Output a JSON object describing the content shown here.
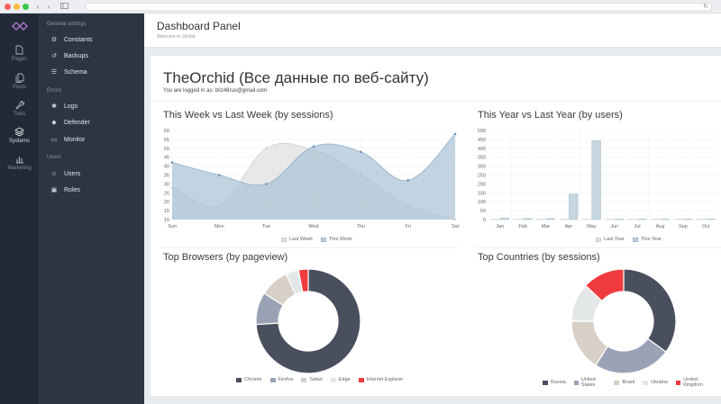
{
  "sidebar": {
    "rail": [
      {
        "label": "Pages",
        "icon": "file-icon"
      },
      {
        "label": "Posts",
        "icon": "documents-icon"
      },
      {
        "label": "Tools",
        "icon": "wrench-icon"
      },
      {
        "label": "Systems",
        "icon": "layers-icon"
      },
      {
        "label": "Marketing",
        "icon": "bar-chart-icon"
      }
    ],
    "sections": [
      {
        "title": "General settings",
        "items": [
          {
            "label": "Constants",
            "icon": "gear-icon"
          },
          {
            "label": "Backups",
            "icon": "history-icon"
          },
          {
            "label": "Schema",
            "icon": "database-icon"
          }
        ]
      },
      {
        "title": "Errors",
        "items": [
          {
            "label": "Logs",
            "icon": "bug-icon"
          },
          {
            "label": "Defender",
            "icon": "shield-icon"
          },
          {
            "label": "Monitor",
            "icon": "monitor-icon"
          }
        ]
      },
      {
        "title": "Users",
        "items": [
          {
            "label": "Users",
            "icon": "user-icon"
          },
          {
            "label": "Roles",
            "icon": "lock-icon"
          }
        ]
      }
    ]
  },
  "header": {
    "title": "Dashboard Panel",
    "subtitle": "Welcome to Orchid"
  },
  "panel": {
    "title": "TheOrchid (Все данные по веб-сайту)",
    "logged_in": "You are logged in as: bliz48rus@gmail.com"
  },
  "colors": {
    "dark": "#4a4f5e",
    "steel": "#99a3b5",
    "beige": "#d8cfc6",
    "light": "#e4e7e8",
    "red": "#ef3b3f",
    "blue_fill": "#b9cbd8",
    "grey_fill": "#e1e1e1"
  },
  "chart_data": [
    {
      "type": "area",
      "title": "This Week vs Last Week (by sessions)",
      "categories": [
        "Sun",
        "Mon",
        "Tue",
        "Wed",
        "Thu",
        "Fri",
        "Sat"
      ],
      "series": [
        {
          "name": "Last Week",
          "values": [
            28,
            18,
            50,
            49,
            35,
            18,
            10
          ]
        },
        {
          "name": "This Week",
          "values": [
            42,
            35,
            30,
            51,
            48,
            32,
            58
          ]
        }
      ],
      "ylim": [
        10,
        60
      ],
      "yticks": [
        "60",
        "55",
        "50",
        "45",
        "40",
        "35",
        "30",
        "25",
        "20",
        "15",
        "10"
      ]
    },
    {
      "type": "bar",
      "title": "This Year vs Last Year (by users)",
      "categories": [
        "Jan",
        "Feb",
        "Mar",
        "Apr",
        "May",
        "Jun",
        "Jul",
        "Aug",
        "Sep",
        "Oct"
      ],
      "series": [
        {
          "name": "Last Year",
          "values": [
            0,
            0,
            0,
            0,
            0,
            0,
            0,
            0,
            0,
            0
          ]
        },
        {
          "name": "This Year",
          "values": [
            5,
            3,
            3,
            140,
            440,
            0,
            0,
            0,
            0,
            0
          ]
        }
      ],
      "ylim": [
        0,
        500
      ],
      "yticks": [
        "500",
        "450",
        "400",
        "350",
        "300",
        "250",
        "200",
        "150",
        "100",
        "50",
        "0"
      ]
    },
    {
      "type": "pie",
      "title": "Top Browsers (by pageview)",
      "categories": [
        "Chrome",
        "Firefox",
        "Safari",
        "Edge",
        "Internet Explorer"
      ],
      "values": [
        74,
        10,
        9,
        4,
        3
      ]
    },
    {
      "type": "pie",
      "title": "Top Countries (by sessions)",
      "categories": [
        "Russia",
        "United States",
        "Brazil",
        "Ukraine",
        "United Kingdom"
      ],
      "values": [
        35,
        24,
        16,
        12,
        13
      ]
    }
  ]
}
